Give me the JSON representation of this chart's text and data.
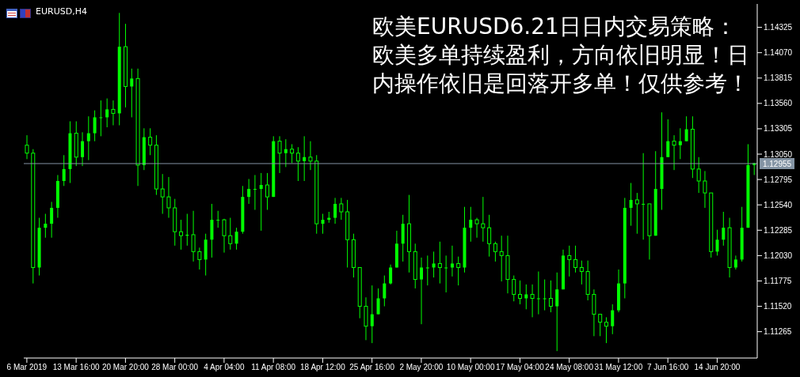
{
  "chart_data": {
    "type": "candlestick",
    "title": "EURUSD,H4",
    "annotations": [
      "欧美EURUSD6.21日日内交易策略：欧美多单持续盈利，方向依旧明显！日内操作依旧是回落开多单！仅供参考！"
    ],
    "categories": [
      "6 Mar 2019",
      null,
      null,
      null,
      null,
      null,
      null,
      null,
      "13 Mar 16:00",
      null,
      null,
      null,
      null,
      null,
      null,
      null,
      "20 Mar 20:00",
      null,
      null,
      null,
      null,
      null,
      null,
      null,
      "28 Mar 00:00",
      null,
      null,
      null,
      null,
      null,
      null,
      null,
      "4 Apr 04:00",
      null,
      null,
      null,
      null,
      null,
      null,
      null,
      "11 Apr 08:00",
      null,
      null,
      null,
      null,
      null,
      null,
      null,
      "18 Apr 12:00",
      null,
      null,
      null,
      null,
      null,
      null,
      null,
      "25 Apr 16:00",
      null,
      null,
      null,
      null,
      null,
      null,
      null,
      "2 May 20:00",
      null,
      null,
      null,
      null,
      null,
      null,
      null,
      "10 May 00:00",
      null,
      null,
      null,
      null,
      null,
      null,
      null,
      "17 May 04:00",
      null,
      null,
      null,
      null,
      null,
      null,
      null,
      "24 May 08:00",
      null,
      null,
      null,
      null,
      null,
      null,
      null,
      "31 May 12:00",
      null,
      null,
      null,
      null,
      null,
      null,
      null,
      "7 Jun 16:00",
      null,
      null,
      null,
      null,
      null,
      null,
      null,
      "14 Jun 20:00",
      null,
      null,
      null,
      null,
      null,
      null
    ],
    "ohlc": [
      [
        1.1314,
        1.1324,
        1.13,
        1.1306
      ],
      [
        1.1306,
        1.131,
        1.1175,
        1.1191
      ],
      [
        1.1191,
        1.1241,
        1.1183,
        1.1231
      ],
      [
        1.1231,
        1.1245,
        1.1221,
        1.1235
      ],
      [
        1.1235,
        1.1257,
        1.1221,
        1.1251
      ],
      [
        1.1251,
        1.1284,
        1.1241,
        1.1278
      ],
      [
        1.1278,
        1.1304,
        1.1273,
        1.129
      ],
      [
        1.129,
        1.1338,
        1.1276,
        1.1326
      ],
      [
        1.1326,
        1.1338,
        1.1293,
        1.1302
      ],
      [
        1.1302,
        1.1327,
        1.1293,
        1.1318
      ],
      [
        1.1318,
        1.1343,
        1.1299,
        1.1326
      ],
      [
        1.1326,
        1.1349,
        1.1318,
        1.1342
      ],
      [
        1.1342,
        1.1359,
        1.1323,
        1.1342
      ],
      [
        1.1342,
        1.1361,
        1.1332,
        1.135
      ],
      [
        1.135,
        1.1359,
        1.1334,
        1.1346
      ],
      [
        1.1346,
        1.1447,
        1.1334,
        1.1413
      ],
      [
        1.1413,
        1.1436,
        1.1352,
        1.1373
      ],
      [
        1.1373,
        1.1391,
        1.1342,
        1.1381
      ],
      [
        1.1381,
        1.1391,
        1.1273,
        1.1294
      ],
      [
        1.1294,
        1.1331,
        1.1289,
        1.1322
      ],
      [
        1.1322,
        1.1331,
        1.1304,
        1.1314
      ],
      [
        1.1314,
        1.1324,
        1.1264,
        1.127
      ],
      [
        1.127,
        1.1285,
        1.1245,
        1.1262
      ],
      [
        1.1262,
        1.1282,
        1.1241,
        1.1251
      ],
      [
        1.1251,
        1.126,
        1.1213,
        1.1227
      ],
      [
        1.1227,
        1.1239,
        1.1209,
        1.1223
      ],
      [
        1.1223,
        1.1245,
        1.1213,
        1.1224
      ],
      [
        1.1224,
        1.1248,
        1.1197,
        1.1207
      ],
      [
        1.1207,
        1.1211,
        1.1189,
        1.1199
      ],
      [
        1.1199,
        1.1225,
        1.1183,
        1.1219
      ],
      [
        1.1219,
        1.1255,
        1.1201,
        1.1239
      ],
      [
        1.1239,
        1.1248,
        1.1231,
        1.1239
      ],
      [
        1.1239,
        1.124,
        1.1206,
        1.1223
      ],
      [
        1.1223,
        1.1241,
        1.1209,
        1.1215
      ],
      [
        1.1215,
        1.1231,
        1.1209,
        1.1227
      ],
      [
        1.1227,
        1.1273,
        1.1225,
        1.1262
      ],
      [
        1.1262,
        1.128,
        1.1255,
        1.127
      ],
      [
        1.127,
        1.1284,
        1.1249,
        1.127
      ],
      [
        1.127,
        1.1286,
        1.1228,
        1.1274
      ],
      [
        1.1274,
        1.1286,
        1.1249,
        1.1262
      ],
      [
        1.1262,
        1.1323,
        1.1262,
        1.1318
      ],
      [
        1.1318,
        1.1323,
        1.1286,
        1.1306
      ],
      [
        1.1306,
        1.132,
        1.1292,
        1.131
      ],
      [
        1.131,
        1.1315,
        1.1296,
        1.1306
      ],
      [
        1.1306,
        1.1312,
        1.1278,
        1.1298
      ],
      [
        1.1298,
        1.1323,
        1.1278,
        1.1302
      ],
      [
        1.1302,
        1.1318,
        1.1289,
        1.1298
      ],
      [
        1.1298,
        1.1304,
        1.1225,
        1.1235
      ],
      [
        1.1235,
        1.1245,
        1.1225,
        1.1239
      ],
      [
        1.1239,
        1.1247,
        1.1236,
        1.1241
      ],
      [
        1.1241,
        1.1261,
        1.1235,
        1.1255
      ],
      [
        1.1255,
        1.1261,
        1.1239,
        1.1247
      ],
      [
        1.1247,
        1.1259,
        1.1191,
        1.1219
      ],
      [
        1.1219,
        1.1225,
        1.1181,
        1.1191
      ],
      [
        1.1191,
        1.1191,
        1.114,
        1.1152
      ],
      [
        1.1152,
        1.1161,
        1.1118,
        1.1132
      ],
      [
        1.1132,
        1.1173,
        1.1115,
        1.1144
      ],
      [
        1.1144,
        1.117,
        1.1144,
        1.116
      ],
      [
        1.116,
        1.1183,
        1.1152,
        1.1175
      ],
      [
        1.1175,
        1.1194,
        1.1174,
        1.1191
      ],
      [
        1.1191,
        1.1228,
        1.1191,
        1.1215
      ],
      [
        1.1215,
        1.1244,
        1.1197,
        1.1235
      ],
      [
        1.1235,
        1.1264,
        1.1186,
        1.1207
      ],
      [
        1.1207,
        1.1215,
        1.117,
        1.1179
      ],
      [
        1.1179,
        1.1201,
        1.1134,
        1.1191
      ],
      [
        1.1191,
        1.1203,
        1.1173,
        1.1191
      ],
      [
        1.1191,
        1.1207,
        1.1181,
        1.1195
      ],
      [
        1.1195,
        1.1217,
        1.1175,
        1.1191
      ],
      [
        1.1191,
        1.1203,
        1.1166,
        1.1191
      ],
      [
        1.1191,
        1.1213,
        1.1182,
        1.1195
      ],
      [
        1.1195,
        1.1202,
        1.1173,
        1.1191
      ],
      [
        1.1191,
        1.1252,
        1.1186,
        1.1231
      ],
      [
        1.1231,
        1.1252,
        1.1217,
        1.1239
      ],
      [
        1.1239,
        1.1241,
        1.1221,
        1.1235
      ],
      [
        1.1235,
        1.1262,
        1.1217,
        1.1231
      ],
      [
        1.1231,
        1.1244,
        1.1202,
        1.1215
      ],
      [
        1.1215,
        1.1217,
        1.1197,
        1.1207
      ],
      [
        1.1207,
        1.1223,
        1.1177,
        1.1203
      ],
      [
        1.1203,
        1.1223,
        1.1165,
        1.1179
      ],
      [
        1.1179,
        1.1183,
        1.1157,
        1.1164
      ],
      [
        1.1164,
        1.1178,
        1.1154,
        1.116
      ],
      [
        1.116,
        1.1174,
        1.1149,
        1.1164
      ],
      [
        1.1164,
        1.1174,
        1.1141,
        1.116
      ],
      [
        1.116,
        1.1187,
        1.1144,
        1.116
      ],
      [
        1.116,
        1.1179,
        1.1148,
        1.116
      ],
      [
        1.116,
        1.1178,
        1.1146,
        1.1152
      ],
      [
        1.1152,
        1.1186,
        1.1107,
        1.1169
      ],
      [
        1.1169,
        1.1209,
        1.1169,
        1.1203
      ],
      [
        1.1203,
        1.1213,
        1.1182,
        1.1199
      ],
      [
        1.1199,
        1.1213,
        1.1186,
        1.1191
      ],
      [
        1.1191,
        1.1198,
        1.1174,
        1.1187
      ],
      [
        1.1187,
        1.1198,
        1.1158,
        1.1164
      ],
      [
        1.1164,
        1.1169,
        1.1122,
        1.1144
      ],
      [
        1.1144,
        1.1144,
        1.1122,
        1.1136
      ],
      [
        1.1136,
        1.1141,
        1.1115,
        1.1132
      ],
      [
        1.1132,
        1.1154,
        1.1124,
        1.1148
      ],
      [
        1.1148,
        1.1189,
        1.1146,
        1.1175
      ],
      [
        1.1175,
        1.1261,
        1.116,
        1.1251
      ],
      [
        1.1251,
        1.1276,
        1.1233,
        1.1259
      ],
      [
        1.1259,
        1.1266,
        1.1225,
        1.1255
      ],
      [
        1.1255,
        1.1306,
        1.1219,
        1.1255
      ],
      [
        1.1255,
        1.1255,
        1.1199,
        1.1223
      ],
      [
        1.1223,
        1.1308,
        1.1223,
        1.127
      ],
      [
        1.127,
        1.1347,
        1.1249,
        1.1302
      ],
      [
        1.1302,
        1.134,
        1.1302,
        1.1318
      ],
      [
        1.1318,
        1.1324,
        1.1289,
        1.1314
      ],
      [
        1.1314,
        1.1331,
        1.13,
        1.1318
      ],
      [
        1.1318,
        1.1343,
        1.1318,
        1.133
      ],
      [
        1.133,
        1.1343,
        1.1281,
        1.129
      ],
      [
        1.129,
        1.1302,
        1.1266,
        1.1278
      ],
      [
        1.1278,
        1.1288,
        1.1251,
        1.1266
      ],
      [
        1.1266,
        1.1266,
        1.1201,
        1.1207
      ],
      [
        1.1207,
        1.1229,
        1.1203,
        1.1219
      ],
      [
        1.1219,
        1.1247,
        1.1213,
        1.1231
      ],
      [
        1.1231,
        1.1241,
        1.1181,
        1.1191
      ],
      [
        1.1191,
        1.1203,
        1.1189,
        1.1199
      ],
      [
        1.1199,
        1.1252,
        1.1197,
        1.1231
      ],
      [
        1.1231,
        1.1315,
        1.1231,
        1.1294
      ],
      [
        1.1294,
        1.1296,
        1.1284,
        1.1296
      ]
    ],
    "color": "#00ff00",
    "ylim": [
      1.11,
      1.1456
    ],
    "yticks": [
      1.11265,
      {
        "value": 1.1152,
        "label": "1.11520"
      },
      1.11775,
      {
        "value": 1.1203,
        "label": "1.12030"
      },
      1.12285,
      {
        "value": 1.1254,
        "label": "1.12540"
      },
      1.12795,
      {
        "value": 1.1305,
        "label": "1.13050"
      },
      1.13305,
      {
        "value": 1.1356,
        "label": "1.13560"
      },
      1.13815,
      {
        "value": 1.1407,
        "label": "1.14070"
      },
      1.14325
    ],
    "ref_lines": [
      {
        "axis": "y",
        "value": 1.12955,
        "label": "1.12955",
        "color": "#8494a4"
      }
    ]
  }
}
